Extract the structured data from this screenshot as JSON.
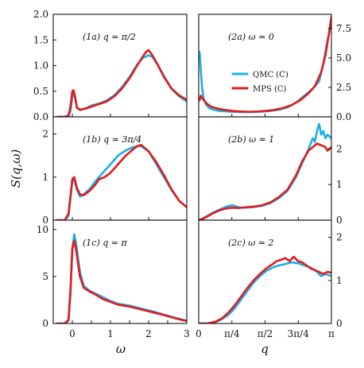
{
  "colors": {
    "qmc": "#1ab0e6",
    "mps": "#e31a1c",
    "axes": "#111111"
  },
  "legend": [
    {
      "series": "qmc",
      "label": "QMC (C)"
    },
    {
      "series": "mps",
      "label": "MPS (C)"
    }
  ],
  "axis_titles": {
    "y": "S(q,ω)",
    "x_left": "ω",
    "x_right": "q"
  },
  "chart_data": [
    {
      "id": "1a",
      "type": "line",
      "label": "(1a)  q ≃ π/2",
      "column": "left",
      "row": 0,
      "xlim": [
        -0.5,
        3.0
      ],
      "ylim": [
        0,
        2.0
      ],
      "yticks": [
        0.0,
        0.5,
        1.0,
        1.5,
        2.0
      ],
      "ytick_labels": [
        "0.0",
        "0.5",
        "1.0",
        "1.5",
        "2.0"
      ],
      "xticks": [
        0,
        1,
        2,
        3
      ],
      "y_axis_side": "left",
      "series": [
        {
          "name": "QMC (C)",
          "key": "qmc",
          "x": [
            -0.4,
            -0.2,
            -0.1,
            -0.05,
            0.0,
            0.03,
            0.07,
            0.12,
            0.2,
            0.35,
            0.5,
            0.7,
            0.9,
            1.1,
            1.3,
            1.5,
            1.7,
            1.85,
            2.0,
            2.1,
            2.25,
            2.4,
            2.6,
            2.8,
            3.0
          ],
          "y": [
            0.0,
            0.0,
            0.02,
            0.1,
            0.38,
            0.45,
            0.38,
            0.18,
            0.13,
            0.17,
            0.22,
            0.26,
            0.32,
            0.42,
            0.58,
            0.78,
            1.02,
            1.15,
            1.2,
            1.17,
            1.0,
            0.8,
            0.55,
            0.4,
            0.3
          ]
        },
        {
          "name": "MPS (C)",
          "key": "mps",
          "x": [
            -0.4,
            -0.2,
            -0.1,
            -0.05,
            0.0,
            0.03,
            0.07,
            0.12,
            0.2,
            0.35,
            0.5,
            0.7,
            0.9,
            1.1,
            1.3,
            1.5,
            1.7,
            1.85,
            1.95,
            2.0,
            2.1,
            2.25,
            2.4,
            2.6,
            2.8,
            3.0
          ],
          "y": [
            0.0,
            0.0,
            0.03,
            0.2,
            0.5,
            0.52,
            0.4,
            0.18,
            0.14,
            0.16,
            0.2,
            0.25,
            0.3,
            0.4,
            0.55,
            0.75,
            1.0,
            1.18,
            1.28,
            1.3,
            1.2,
            1.0,
            0.78,
            0.55,
            0.42,
            0.33
          ]
        }
      ]
    },
    {
      "id": "1b",
      "type": "line",
      "label": "(1b)  q ≃ 3π/4",
      "column": "left",
      "row": 1,
      "xlim": [
        -0.5,
        3.0
      ],
      "ylim": [
        0,
        2.4
      ],
      "yticks": [
        0,
        1,
        2
      ],
      "ytick_labels": [
        "0",
        "1",
        "2"
      ],
      "xticks": [
        0,
        1,
        2,
        3
      ],
      "y_axis_side": "left",
      "series": [
        {
          "name": "QMC (C)",
          "key": "qmc",
          "x": [
            -0.4,
            -0.2,
            -0.1,
            0.0,
            0.05,
            0.12,
            0.2,
            0.3,
            0.45,
            0.6,
            0.8,
            1.0,
            1.2,
            1.4,
            1.6,
            1.8,
            2.0,
            2.2,
            2.4,
            2.6,
            2.8,
            3.0
          ],
          "y": [
            0.0,
            0.0,
            0.1,
            0.9,
            0.95,
            0.7,
            0.55,
            0.6,
            0.72,
            0.9,
            1.1,
            1.3,
            1.5,
            1.62,
            1.7,
            1.72,
            1.6,
            1.3,
            1.0,
            0.7,
            0.45,
            0.3
          ]
        },
        {
          "name": "MPS (C)",
          "key": "mps",
          "x": [
            -0.4,
            -0.2,
            -0.1,
            0.0,
            0.05,
            0.12,
            0.2,
            0.3,
            0.45,
            0.6,
            0.7,
            0.85,
            1.0,
            1.2,
            1.4,
            1.6,
            1.7,
            1.8,
            2.0,
            2.2,
            2.4,
            2.6,
            2.8,
            3.0
          ],
          "y": [
            0.0,
            0.0,
            0.15,
            0.95,
            1.0,
            0.75,
            0.6,
            0.58,
            0.68,
            0.82,
            0.95,
            1.0,
            1.1,
            1.3,
            1.5,
            1.65,
            1.72,
            1.75,
            1.6,
            1.35,
            1.05,
            0.72,
            0.45,
            0.3
          ]
        }
      ]
    },
    {
      "id": "1c",
      "type": "line",
      "label": "(1c)  q ≃ π",
      "column": "left",
      "row": 2,
      "xlim": [
        -0.5,
        3.0
      ],
      "ylim": [
        0,
        11.0
      ],
      "yticks": [
        0,
        5,
        10
      ],
      "ytick_labels": [
        "0",
        "5",
        "10"
      ],
      "xticks": [
        -0.5,
        0,
        0.5,
        1,
        1.5,
        2,
        2.5,
        3
      ],
      "xtick_labels": [
        "",
        "0",
        "",
        "1",
        "",
        "2",
        "",
        "3"
      ],
      "y_axis_side": "left",
      "series": [
        {
          "name": "QMC (C)",
          "key": "qmc",
          "x": [
            -0.4,
            -0.2,
            -0.1,
            -0.05,
            0.0,
            0.05,
            0.1,
            0.2,
            0.3,
            0.45,
            0.6,
            0.8,
            1.0,
            1.2,
            1.5,
            1.8,
            2.1,
            2.4,
            2.7,
            3.0
          ],
          "y": [
            0.0,
            0.0,
            0.3,
            3.0,
            8.0,
            9.5,
            8.5,
            5.5,
            4.0,
            3.5,
            3.2,
            2.8,
            2.4,
            2.1,
            1.9,
            1.6,
            1.3,
            0.95,
            0.6,
            0.3
          ]
        },
        {
          "name": "MPS (C)",
          "key": "mps",
          "x": [
            -0.4,
            -0.2,
            -0.1,
            -0.05,
            0.0,
            0.05,
            0.1,
            0.2,
            0.3,
            0.45,
            0.6,
            0.8,
            1.0,
            1.2,
            1.5,
            1.8,
            2.1,
            2.4,
            2.7,
            3.0
          ],
          "y": [
            0.0,
            0.0,
            0.4,
            3.5,
            8.0,
            8.8,
            7.8,
            5.0,
            3.8,
            3.4,
            3.1,
            2.6,
            2.3,
            2.0,
            1.8,
            1.5,
            1.2,
            0.9,
            0.55,
            0.25
          ]
        }
      ]
    },
    {
      "id": "2a",
      "type": "line",
      "label": "(2a)  ω ≃ 0",
      "column": "right",
      "row": 0,
      "xlim": [
        0,
        3.1416
      ],
      "ylim": [
        0,
        8.7
      ],
      "yticks": [
        0.0,
        2.5,
        5.0,
        7.5
      ],
      "ytick_labels": [
        "0.0",
        "2.5",
        "5.0",
        "7.5"
      ],
      "xticks": [
        0,
        0.7854,
        1.5708,
        2.3562,
        3.1416
      ],
      "y_axis_side": "right",
      "series": [
        {
          "name": "QMC (C)",
          "key": "qmc",
          "x": [
            0.02,
            0.05,
            0.08,
            0.12,
            0.18,
            0.25,
            0.35,
            0.5,
            0.7,
            0.9,
            1.1,
            1.3,
            1.5,
            1.7,
            1.9,
            2.1,
            2.3,
            2.5,
            2.7,
            2.85,
            2.95,
            3.05,
            3.1416
          ],
          "y": [
            5.5,
            4.0,
            2.5,
            1.5,
            1.0,
            0.75,
            0.6,
            0.5,
            0.45,
            0.42,
            0.4,
            0.42,
            0.45,
            0.5,
            0.6,
            0.8,
            1.2,
            1.8,
            2.4,
            3.0,
            4.5,
            6.5,
            8.0
          ]
        },
        {
          "name": "MPS (C)",
          "key": "mps",
          "x": [
            0.02,
            0.05,
            0.1,
            0.2,
            0.3,
            0.45,
            0.6,
            0.8,
            1.0,
            1.2,
            1.4,
            1.6,
            1.8,
            2.0,
            2.2,
            2.4,
            2.6,
            2.75,
            2.9,
            3.0,
            3.08,
            3.1416
          ],
          "y": [
            1.4,
            1.8,
            1.5,
            1.1,
            0.85,
            0.7,
            0.6,
            0.5,
            0.45,
            0.43,
            0.45,
            0.5,
            0.6,
            0.75,
            1.0,
            1.4,
            2.0,
            2.6,
            3.8,
            5.2,
            7.0,
            8.5
          ]
        }
      ]
    },
    {
      "id": "2b",
      "type": "line",
      "label": "(2b)  ω ≃ 1",
      "column": "right",
      "row": 1,
      "xlim": [
        0,
        3.1416
      ],
      "ylim": [
        0,
        2.9
      ],
      "yticks": [
        0,
        1,
        2
      ],
      "ytick_labels": [
        "0",
        "1",
        "2"
      ],
      "xticks": [
        0,
        0.7854,
        1.5708,
        2.3562,
        3.1416
      ],
      "y_axis_side": "right",
      "series": [
        {
          "name": "QMC (C)",
          "key": "qmc",
          "x": [
            0.0,
            0.1,
            0.2,
            0.35,
            0.5,
            0.65,
            0.8,
            0.95,
            1.1,
            1.3,
            1.5,
            1.7,
            1.9,
            2.1,
            2.3,
            2.45,
            2.6,
            2.7,
            2.75,
            2.8,
            2.85,
            2.9,
            2.95,
            3.0,
            3.05,
            3.1416
          ],
          "y": [
            0.0,
            0.05,
            0.12,
            0.22,
            0.3,
            0.38,
            0.42,
            0.36,
            0.35,
            0.37,
            0.4,
            0.48,
            0.62,
            0.82,
            1.2,
            1.6,
            2.0,
            2.3,
            2.2,
            2.5,
            2.7,
            2.4,
            2.5,
            2.3,
            2.4,
            2.3
          ]
        },
        {
          "name": "MPS (C)",
          "key": "mps",
          "x": [
            0.0,
            0.1,
            0.2,
            0.35,
            0.5,
            0.65,
            0.8,
            0.95,
            1.1,
            1.3,
            1.5,
            1.7,
            1.9,
            2.1,
            2.3,
            2.45,
            2.6,
            2.7,
            2.8,
            2.9,
            3.0,
            3.05,
            3.1416
          ],
          "y": [
            0.0,
            0.04,
            0.1,
            0.2,
            0.28,
            0.33,
            0.35,
            0.34,
            0.36,
            0.38,
            0.42,
            0.5,
            0.65,
            0.85,
            1.25,
            1.65,
            1.95,
            2.05,
            2.15,
            2.1,
            2.05,
            1.95,
            2.05
          ]
        }
      ]
    },
    {
      "id": "2c",
      "type": "line",
      "label": "(2c)  ω ≃ 2",
      "column": "right",
      "row": 2,
      "xlim": [
        0,
        3.1416
      ],
      "ylim": [
        0,
        2.4
      ],
      "yticks": [
        0,
        1,
        2
      ],
      "ytick_labels": [
        "0",
        "1",
        "2"
      ],
      "xticks": [
        0,
        0.7854,
        1.5708,
        2.3562,
        3.1416
      ],
      "xtick_labels": [
        "0",
        "π/4",
        "π/2",
        "3π/4",
        "π"
      ],
      "y_axis_side": "right",
      "series": [
        {
          "name": "QMC (C)",
          "key": "qmc",
          "x": [
            0.0,
            0.2,
            0.4,
            0.55,
            0.7,
            0.85,
            1.0,
            1.15,
            1.3,
            1.45,
            1.6,
            1.75,
            1.9,
            2.05,
            2.2,
            2.35,
            2.5,
            2.65,
            2.8,
            2.9,
            3.0,
            3.1416
          ],
          "y": [
            0.0,
            0.0,
            0.03,
            0.1,
            0.2,
            0.35,
            0.55,
            0.75,
            0.95,
            1.1,
            1.22,
            1.3,
            1.35,
            1.38,
            1.42,
            1.4,
            1.35,
            1.3,
            1.2,
            1.1,
            1.15,
            1.1
          ]
        },
        {
          "name": "MPS (C)",
          "key": "mps",
          "x": [
            0.0,
            0.2,
            0.4,
            0.55,
            0.7,
            0.85,
            1.0,
            1.15,
            1.3,
            1.45,
            1.6,
            1.75,
            1.85,
            1.95,
            2.05,
            2.15,
            2.25,
            2.35,
            2.45,
            2.55,
            2.65,
            2.8,
            2.95,
            3.05,
            3.1416
          ],
          "y": [
            0.0,
            0.0,
            0.04,
            0.12,
            0.25,
            0.42,
            0.62,
            0.82,
            1.0,
            1.15,
            1.28,
            1.38,
            1.45,
            1.48,
            1.52,
            1.45,
            1.55,
            1.45,
            1.42,
            1.35,
            1.28,
            1.22,
            1.15,
            1.2,
            1.18
          ]
        }
      ]
    }
  ]
}
